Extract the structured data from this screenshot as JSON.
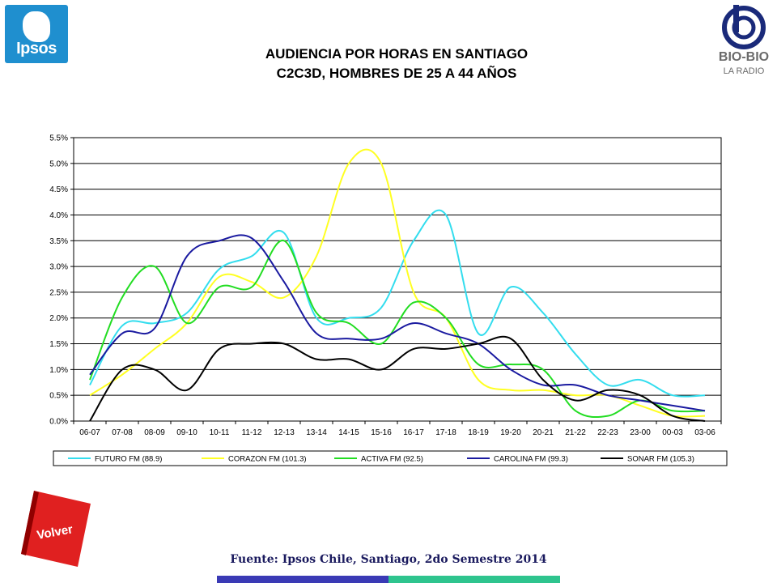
{
  "logos": {
    "ipsos": "Ipsos",
    "biobio_name": "BIO-BIO",
    "biobio_sub": "LA RADIO"
  },
  "title_line1": "AUDIENCIA POR HORAS EN SANTIAGO",
  "title_line2": "C2C3D, HOMBRES DE 25 A 44 AÑOS",
  "volver_label": "Volver",
  "source": "Fuente: Ipsos Chile, Santiago, 2do Semestre 2014",
  "chart_data": {
    "type": "line",
    "categories": [
      "06-07",
      "07-08",
      "08-09",
      "09-10",
      "10-11",
      "11-12",
      "12-13",
      "13-14",
      "14-15",
      "15-16",
      "16-17",
      "17-18",
      "18-19",
      "19-20",
      "20-21",
      "21-22",
      "22-23",
      "23-00",
      "00-03",
      "03-06"
    ],
    "y_ticks": [
      "0.0%",
      "0.5%",
      "1.0%",
      "1.5%",
      "2.0%",
      "2.5%",
      "3.0%",
      "3.5%",
      "4.0%",
      "4.5%",
      "5.0%",
      "5.5%"
    ],
    "ylim": [
      0,
      5.5
    ],
    "grid": true,
    "legend_position": "bottom",
    "series": [
      {
        "name": "FUTURO FM (88.9)",
        "color": "#33ddee",
        "values": [
          0.7,
          1.85,
          1.9,
          2.1,
          2.95,
          3.2,
          3.65,
          2.0,
          2.0,
          2.2,
          3.5,
          4.0,
          1.7,
          2.6,
          2.1,
          1.3,
          0.7,
          0.8,
          0.5,
          0.5
        ]
      },
      {
        "name": "CORAZON FM (101.3)",
        "color": "#ffff22",
        "values": [
          0.5,
          0.9,
          1.4,
          1.9,
          2.8,
          2.7,
          2.4,
          3.2,
          5.0,
          5.0,
          2.5,
          2.0,
          0.8,
          0.6,
          0.6,
          0.5,
          0.5,
          0.3,
          0.1,
          0.1
        ]
      },
      {
        "name": "ACTIVA FM (92.5)",
        "color": "#22dd22",
        "values": [
          0.8,
          2.4,
          3.0,
          1.9,
          2.6,
          2.6,
          3.5,
          2.1,
          1.9,
          1.5,
          2.3,
          2.0,
          1.1,
          1.1,
          1.0,
          0.2,
          0.1,
          0.4,
          0.2,
          0.2
        ]
      },
      {
        "name": "CAROLINA FM (99.3)",
        "color": "#1a1aa0",
        "values": [
          0.9,
          1.7,
          1.8,
          3.2,
          3.5,
          3.55,
          2.7,
          1.7,
          1.6,
          1.6,
          1.9,
          1.7,
          1.5,
          1.0,
          0.7,
          0.7,
          0.5,
          0.4,
          0.3,
          0.2
        ]
      },
      {
        "name": "SONAR FM (105.3)",
        "color": "#000000",
        "values": [
          0.0,
          1.0,
          1.0,
          0.6,
          1.4,
          1.5,
          1.5,
          1.2,
          1.2,
          1.0,
          1.4,
          1.4,
          1.5,
          1.6,
          0.8,
          0.4,
          0.6,
          0.5,
          0.1,
          0.0
        ]
      }
    ]
  }
}
